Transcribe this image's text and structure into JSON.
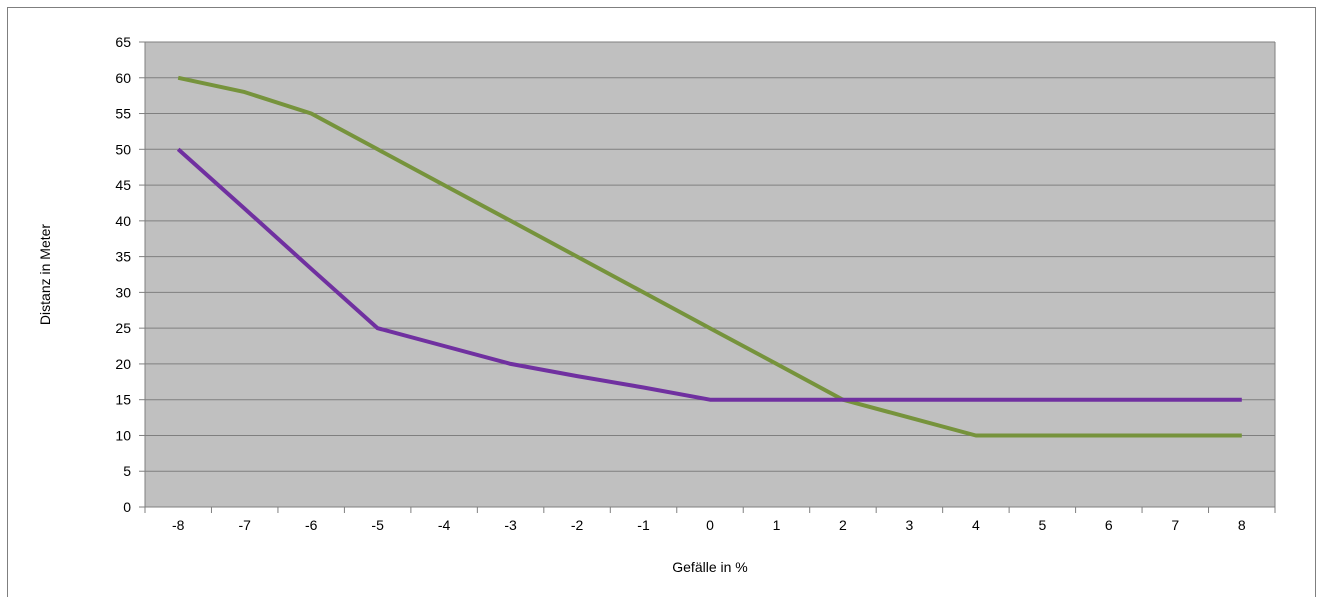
{
  "chart_data": {
    "type": "line",
    "title": "",
    "xlabel": "Gefälle in %",
    "ylabel": "Distanz in Meter",
    "x": [
      -8,
      -7,
      -6,
      -5,
      -4,
      -3,
      -2,
      -1,
      0,
      1,
      2,
      3,
      4,
      5,
      6,
      7,
      8
    ],
    "xticks": [
      "-8",
      "-7",
      "-6",
      "-5",
      "-4",
      "-3",
      "-2",
      "-1",
      "0",
      "1",
      "2",
      "3",
      "4",
      "5",
      "6",
      "7",
      "8"
    ],
    "yticks": [
      "0",
      "5",
      "10",
      "15",
      "20",
      "25",
      "30",
      "35",
      "40",
      "45",
      "50",
      "55",
      "60",
      "65"
    ],
    "ylim": [
      0,
      65
    ],
    "grid": true,
    "legend": "none",
    "plot_background": "#c0c0c0",
    "series": [
      {
        "color": "#76933c",
        "values": [
          60,
          58,
          55,
          50,
          45,
          40,
          35,
          30,
          25,
          20,
          15,
          12.5,
          10,
          10,
          10,
          10,
          10
        ]
      },
      {
        "color": "#7030a0",
        "values": [
          50,
          41.7,
          33.3,
          25,
          22.5,
          20,
          18.3,
          16.7,
          15,
          15,
          15,
          15,
          15,
          15,
          15,
          15,
          15
        ]
      }
    ]
  }
}
